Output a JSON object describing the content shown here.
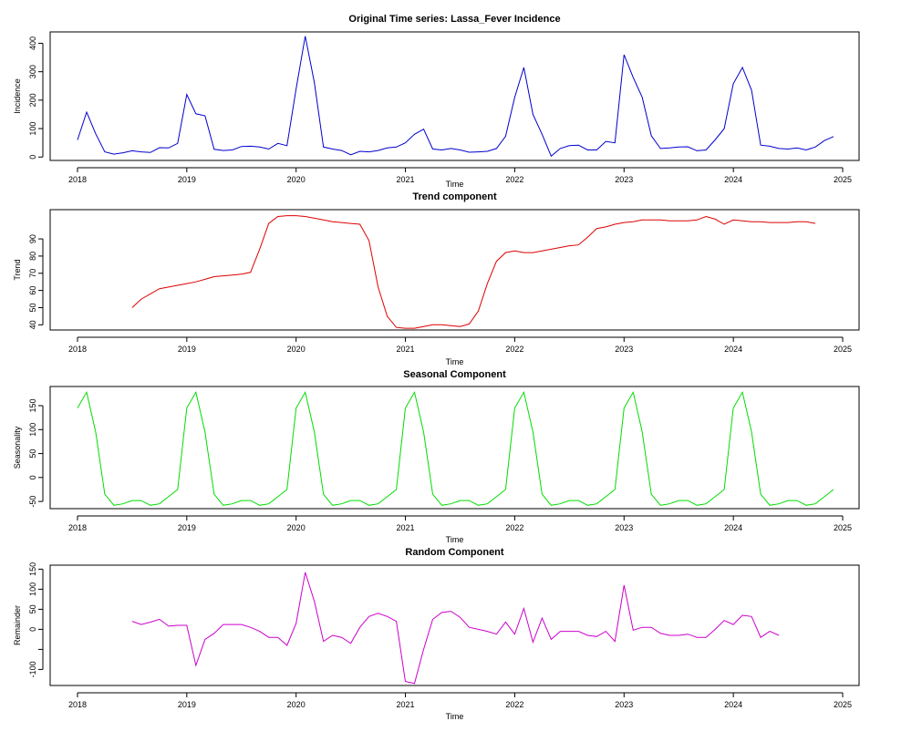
{
  "chart_data": [
    {
      "type": "line",
      "title": "Original Time series: Lassa_Fever Incidence",
      "xlabel": "Time",
      "ylabel": "Incidence",
      "color": "#0000cc",
      "xlim": [
        2017.75,
        2025.15
      ],
      "ylim": [
        -12,
        440
      ],
      "xticks": [
        2018,
        2019,
        2020,
        2021,
        2022,
        2023,
        2024,
        2025
      ],
      "yticks": [
        0,
        100,
        200,
        300,
        400
      ],
      "x_start": 2018,
      "step": 0.08333,
      "values": [
        60,
        158,
        82,
        18,
        10,
        15,
        22,
        18,
        16,
        33,
        32,
        48,
        220,
        152,
        145,
        27,
        23,
        25,
        37,
        38,
        35,
        28,
        48,
        40,
        240,
        425,
        262,
        35,
        28,
        23,
        8,
        20,
        18,
        23,
        32,
        35,
        50,
        80,
        98,
        28,
        25,
        30,
        25,
        17,
        18,
        20,
        30,
        73,
        210,
        315,
        150,
        80,
        3,
        30,
        40,
        42,
        25,
        25,
        55,
        50,
        360,
        280,
        210,
        75,
        30,
        32,
        35,
        36,
        22,
        25,
        60,
        100,
        258,
        315,
        235,
        42,
        38,
        30,
        28,
        32,
        25,
        35,
        58,
        72
      ]
    },
    {
      "type": "line",
      "title": "Trend component",
      "xlabel": "Time",
      "ylabel": "Trend",
      "color": "#dd0000",
      "xlim": [
        2017.75,
        2025.15
      ],
      "ylim": [
        37,
        107
      ],
      "xticks": [
        2018,
        2019,
        2020,
        2021,
        2022,
        2023,
        2024,
        2025
      ],
      "yticks": [
        40,
        50,
        60,
        70,
        80,
        90
      ],
      "x_start": 2018.5,
      "step": 0.08333,
      "values": [
        50,
        55,
        58,
        61,
        62,
        63,
        64,
        65,
        66.5,
        68,
        68.5,
        69,
        69.5,
        70.5,
        84,
        99,
        103,
        103.5,
        103.5,
        103,
        102,
        101,
        100,
        99.5,
        99,
        98.5,
        89,
        62,
        45,
        38.5,
        38,
        38,
        39,
        40,
        40,
        39.5,
        39,
        40.5,
        48,
        64,
        77,
        82,
        83,
        82,
        82,
        83,
        84,
        85,
        86,
        86.5,
        91,
        96,
        97,
        98.5,
        99.5,
        100,
        101,
        101,
        101,
        100.5,
        100.5,
        100.5,
        101,
        103,
        101.5,
        98.5,
        101,
        100.5,
        100,
        100,
        99.5,
        99.5,
        99.5,
        100,
        100,
        99
      ]
    },
    {
      "type": "line",
      "title": "Seasonal Component",
      "xlabel": "Time",
      "ylabel": "Seasonality",
      "color": "#00dd00",
      "xlim": [
        2017.75,
        2025.15
      ],
      "ylim": [
        -65,
        190
      ],
      "xticks": [
        2018,
        2019,
        2020,
        2021,
        2022,
        2023,
        2024,
        2025
      ],
      "yticks": [
        -50,
        0,
        50,
        100,
        150
      ],
      "x_start": 2018,
      "step": 0.08333,
      "pattern": [
        145,
        178,
        95,
        -35,
        -58,
        -55,
        -48,
        -48,
        -58,
        -55,
        -40,
        -25
      ],
      "length": 84
    },
    {
      "type": "line",
      "title": "Random Component",
      "xlabel": "Time",
      "ylabel": "Remainder",
      "color": "#cc00cc",
      "xlim": [
        2017.75,
        2025.15
      ],
      "ylim": [
        -140,
        160
      ],
      "xticks": [
        2018,
        2019,
        2020,
        2021,
        2022,
        2023,
        2024,
        2025
      ],
      "yticks": [
        -100,
        -50,
        0,
        50,
        100,
        150
      ],
      "ytick_labels": [
        "-100",
        "",
        "0",
        "50",
        "100",
        "150"
      ],
      "x_start": 2018.5,
      "step": 0.08333,
      "values": [
        20,
        12,
        18,
        25,
        8,
        10,
        10,
        -90,
        -25,
        -10,
        12,
        12,
        12,
        5,
        -5,
        -20,
        -20,
        -40,
        15,
        142,
        70,
        -30,
        -15,
        -20,
        -35,
        5,
        32,
        40,
        32,
        20,
        -130,
        -135,
        -50,
        25,
        42,
        45,
        30,
        5,
        0,
        -5,
        -12,
        18,
        -12,
        52,
        -32,
        28,
        -25,
        -5,
        -5,
        -5,
        -15,
        -18,
        -5,
        -30,
        110,
        -2,
        5,
        5,
        -10,
        -15,
        -15,
        -12,
        -20,
        -20,
        0,
        22,
        12,
        35,
        32,
        -20,
        -5,
        -15
      ]
    }
  ]
}
